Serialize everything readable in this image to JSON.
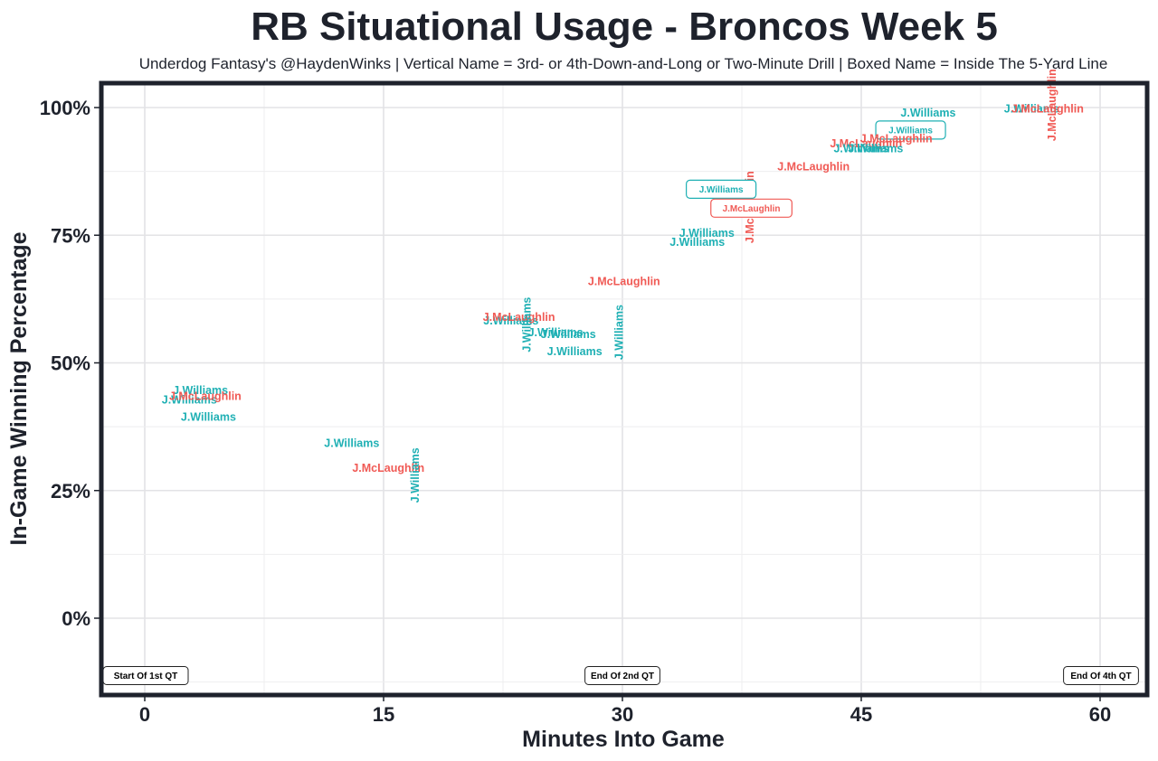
{
  "chart_data": {
    "type": "scatter",
    "title": "RB Situational Usage - Broncos Week 5",
    "subtitle": "Underdog Fantasy's @HaydenWinks | Vertical Name = 3rd- or 4th-Down-and-Long or Two-Minute Drill | Boxed Name = Inside The 5-Yard Line",
    "xlabel": "Minutes Into Game",
    "ylabel": "In-Game Winning Percentage",
    "xlim": [
      -2.7,
      62.5
    ],
    "ylim": [
      -15,
      104
    ],
    "x_ticks": [
      0,
      15,
      30,
      45,
      60
    ],
    "x_tick_labels": [
      "0",
      "15",
      "30",
      "45",
      "60"
    ],
    "y_ticks": [
      0,
      25,
      50,
      75,
      100
    ],
    "y_tick_labels": [
      "0%",
      "25%",
      "50%",
      "75%",
      "100%"
    ],
    "grid": true,
    "legend": "none",
    "colors": {
      "J.Williams": "#1fb0b4",
      "J.McLaughlin": "#f05a55"
    },
    "quarter_labels": [
      {
        "x": 0,
        "y": -10,
        "text": "Start Of 1st QT"
      },
      {
        "x": 30,
        "y": -10,
        "text": "End Of 2nd QT"
      },
      {
        "x": 60,
        "y": -10,
        "text": "End Of 4th QT"
      }
    ],
    "points": [
      {
        "player": "J.Williams",
        "x": 3.5,
        "y": 44.7,
        "type": "normal"
      },
      {
        "player": "J.Williams",
        "x": 2.8,
        "y": 42.8,
        "type": "normal"
      },
      {
        "player": "J.McLaughlin",
        "x": 3.8,
        "y": 43.5,
        "type": "normal"
      },
      {
        "player": "J.Williams",
        "x": 4.0,
        "y": 39.5,
        "type": "normal"
      },
      {
        "player": "J.Williams",
        "x": 13.0,
        "y": 34.3,
        "type": "normal"
      },
      {
        "player": "J.McLaughlin",
        "x": 15.3,
        "y": 29.5,
        "type": "normal"
      },
      {
        "player": "J.Williams",
        "x": 17.0,
        "y": 28.0,
        "type": "vertical"
      },
      {
        "player": "J.Williams",
        "x": 23.0,
        "y": 58.3,
        "type": "normal"
      },
      {
        "player": "J.McLaughlin",
        "x": 23.5,
        "y": 59.0,
        "type": "normal"
      },
      {
        "player": "J.Williams",
        "x": 24.0,
        "y": 57.5,
        "type": "vertical"
      },
      {
        "player": "J.Williams",
        "x": 25.8,
        "y": 56.0,
        "type": "normal"
      },
      {
        "player": "J.Williams",
        "x": 26.6,
        "y": 55.7,
        "type": "normal"
      },
      {
        "player": "J.Williams",
        "x": 27.0,
        "y": 52.3,
        "type": "normal"
      },
      {
        "player": "J.Williams",
        "x": 29.8,
        "y": 56.0,
        "type": "vertical"
      },
      {
        "player": "J.McLaughlin",
        "x": 30.1,
        "y": 66.0,
        "type": "normal"
      },
      {
        "player": "J.Williams",
        "x": 35.3,
        "y": 75.5,
        "type": "normal"
      },
      {
        "player": "J.Williams",
        "x": 34.7,
        "y": 73.7,
        "type": "normal"
      },
      {
        "player": "J.McLaughlin",
        "x": 38.0,
        "y": 80.5,
        "type": "vertical"
      },
      {
        "player": "J.McLaughlin",
        "x": 42.0,
        "y": 88.5,
        "type": "normal"
      },
      {
        "player": "J.Williams",
        "x": 36.2,
        "y": 84.0,
        "type": "boxed"
      },
      {
        "player": "J.McLaughlin",
        "x": 38.1,
        "y": 80.3,
        "type": "boxed"
      },
      {
        "player": "J.Williams",
        "x": 49.2,
        "y": 99.0,
        "type": "normal"
      },
      {
        "player": "J.Williams",
        "x": 48.1,
        "y": 95.6,
        "type": "boxed"
      },
      {
        "player": "J.McLaughlin",
        "x": 47.2,
        "y": 94.0,
        "type": "normal"
      },
      {
        "player": "J.McLaughlin",
        "x": 45.3,
        "y": 93.0,
        "type": "normal"
      },
      {
        "player": "J.Williams",
        "x": 45.0,
        "y": 92.0,
        "type": "normal"
      },
      {
        "player": "J.Williams",
        "x": 45.9,
        "y": 92.0,
        "type": "normal"
      },
      {
        "player": "J.Williams",
        "x": 55.7,
        "y": 99.8,
        "type": "normal"
      },
      {
        "player": "J.McLaughlin",
        "x": 56.7,
        "y": 99.8,
        "type": "normal"
      },
      {
        "player": "J.McLaughlin",
        "x": 57.0,
        "y": 100.5,
        "type": "vertical"
      }
    ]
  }
}
